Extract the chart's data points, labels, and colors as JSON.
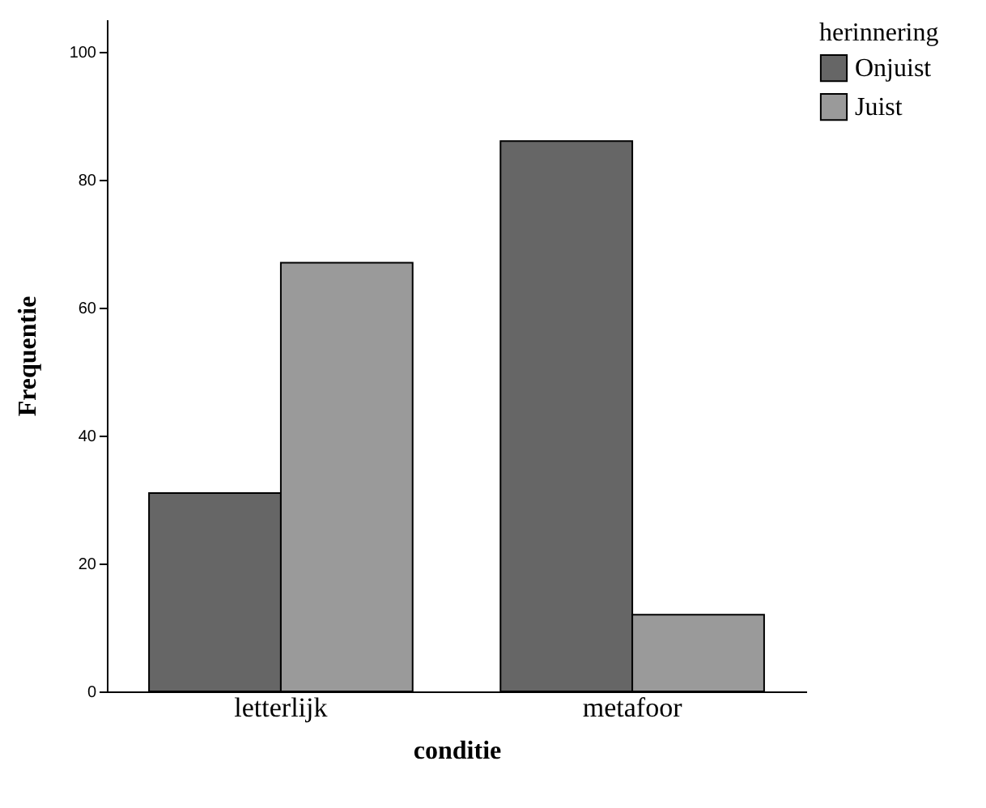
{
  "chart_data": {
    "type": "bar",
    "xlabel": "conditie",
    "ylabel": "Frequentie",
    "legend_title": "herinnering",
    "categories": [
      "letterlijk",
      "metafoor"
    ],
    "series": [
      {
        "name": "Onjuist",
        "color": "#666666",
        "values": [
          31,
          86
        ]
      },
      {
        "name": "Juist",
        "color": "#9a9a9a",
        "values": [
          67,
          12
        ]
      }
    ],
    "ylim": [
      0,
      105
    ],
    "yticks": [
      0,
      20,
      40,
      60,
      80,
      100
    ],
    "grid": false,
    "legend": "top right"
  }
}
